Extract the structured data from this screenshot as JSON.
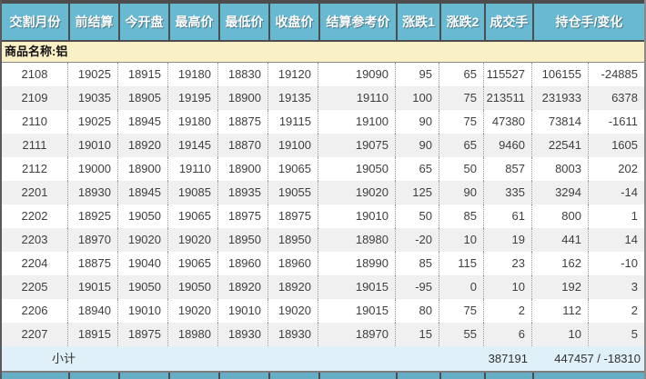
{
  "colors": {
    "header-bg": "#68b9d2",
    "header-border": "#4d4d4d",
    "product-row-bg": "#faf0c6",
    "row-alt-bg": "#f0f0f0",
    "subtotal-bg": "#dff0f8",
    "strip-bg": "#66aec6",
    "text": "#3f3f3f"
  },
  "table": {
    "columns": [
      "交割月份",
      "前结算",
      "今开盘",
      "最高价",
      "最低价",
      "收盘价",
      "结算参考价",
      "涨跌1",
      "涨跌2",
      "成交手",
      "持仓手/变化"
    ],
    "product_label": "商品名称:铝",
    "rows": [
      [
        "2108",
        "19025",
        "18915",
        "19180",
        "18830",
        "19120",
        "19090",
        "95",
        "65",
        "115527",
        "106155",
        "-24885"
      ],
      [
        "2109",
        "19035",
        "18905",
        "19195",
        "18900",
        "19135",
        "19110",
        "100",
        "75",
        "213511",
        "231933",
        "6378"
      ],
      [
        "2110",
        "19025",
        "18945",
        "19180",
        "18875",
        "19115",
        "19100",
        "90",
        "75",
        "47380",
        "73814",
        "-1611"
      ],
      [
        "2111",
        "19010",
        "18920",
        "19145",
        "18870",
        "19100",
        "19075",
        "90",
        "65",
        "9460",
        "22541",
        "1605"
      ],
      [
        "2112",
        "19000",
        "18900",
        "19110",
        "18900",
        "19065",
        "19050",
        "65",
        "50",
        "857",
        "8003",
        "202"
      ],
      [
        "2201",
        "18930",
        "18945",
        "19085",
        "18935",
        "19055",
        "19020",
        "125",
        "90",
        "335",
        "3294",
        "-14"
      ],
      [
        "2202",
        "18925",
        "19050",
        "19065",
        "18975",
        "18975",
        "19010",
        "50",
        "85",
        "61",
        "800",
        "1"
      ],
      [
        "2203",
        "18970",
        "19020",
        "19020",
        "18950",
        "18950",
        "18980",
        "-20",
        "10",
        "19",
        "441",
        "14"
      ],
      [
        "2204",
        "18875",
        "19040",
        "19065",
        "18960",
        "18960",
        "18990",
        "85",
        "115",
        "23",
        "162",
        "-10"
      ],
      [
        "2205",
        "19015",
        "19050",
        "19050",
        "18920",
        "18920",
        "19015",
        "-95",
        "0",
        "10",
        "192",
        "3"
      ],
      [
        "2206",
        "18940",
        "19010",
        "19020",
        "19010",
        "19020",
        "19015",
        "80",
        "75",
        "2",
        "112",
        "2"
      ],
      [
        "2207",
        "18915",
        "18975",
        "18980",
        "18930",
        "18930",
        "18970",
        "15",
        "55",
        "6",
        "10",
        "5"
      ]
    ],
    "subtotal": {
      "label": "小计",
      "volume": "387191",
      "open_interest_change": "447457 / -18310"
    }
  }
}
